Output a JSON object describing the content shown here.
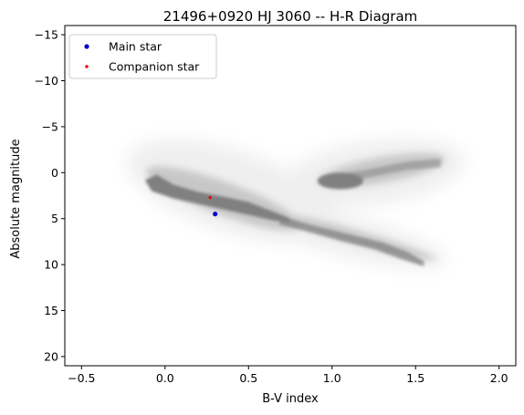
{
  "chart_data": {
    "type": "scatter",
    "title": "21496+0920 HJ 3060 -- H-R Diagram",
    "xlabel": "B-V index",
    "ylabel": "Absolute magnitude",
    "xlim": [
      -0.6,
      2.1
    ],
    "ylim": [
      21,
      -16
    ],
    "y_inverted": true,
    "xticks": [
      -0.5,
      0.0,
      0.5,
      1.0,
      1.5,
      2.0
    ],
    "xtick_labels": [
      "−0.5",
      "0.0",
      "0.5",
      "1.0",
      "1.5",
      "2.0"
    ],
    "yticks": [
      -15,
      -10,
      -5,
      0,
      5,
      10,
      15,
      20
    ],
    "ytick_labels": [
      "−15",
      "−10",
      "−5",
      "0",
      "5",
      "10",
      "15",
      "20"
    ],
    "grid": false,
    "legend_position": "top-left",
    "background_population": {
      "color": "#808080",
      "description_points": [
        {
          "x": -0.05,
          "y": -0.5
        },
        {
          "x": 0.0,
          "y": 1.0
        },
        {
          "x": 0.1,
          "y": 1.8
        },
        {
          "x": 0.25,
          "y": 2.5
        },
        {
          "x": 0.4,
          "y": 3.1
        },
        {
          "x": 0.55,
          "y": 3.9
        },
        {
          "x": 0.7,
          "y": 4.7
        },
        {
          "x": 0.85,
          "y": 5.6
        },
        {
          "x": 1.05,
          "y": 6.6
        },
        {
          "x": 1.25,
          "y": 7.5
        },
        {
          "x": 1.4,
          "y": 8.3
        },
        {
          "x": 1.5,
          "y": 9.5
        },
        {
          "x": 0.95,
          "y": 1.0
        },
        {
          "x": 1.05,
          "y": 0.8
        },
        {
          "x": 1.15,
          "y": 1.2
        },
        {
          "x": 1.3,
          "y": 0.0
        },
        {
          "x": 1.5,
          "y": -1.0
        },
        {
          "x": 1.65,
          "y": -1.3
        }
      ]
    },
    "series": [
      {
        "name": "Main star",
        "color": "#0000cc",
        "points": [
          {
            "x": 0.3,
            "y": 4.5
          }
        ]
      },
      {
        "name": "Companion star",
        "color": "#ee0000",
        "points": [
          {
            "x": 0.27,
            "y": 2.7
          }
        ]
      }
    ]
  }
}
